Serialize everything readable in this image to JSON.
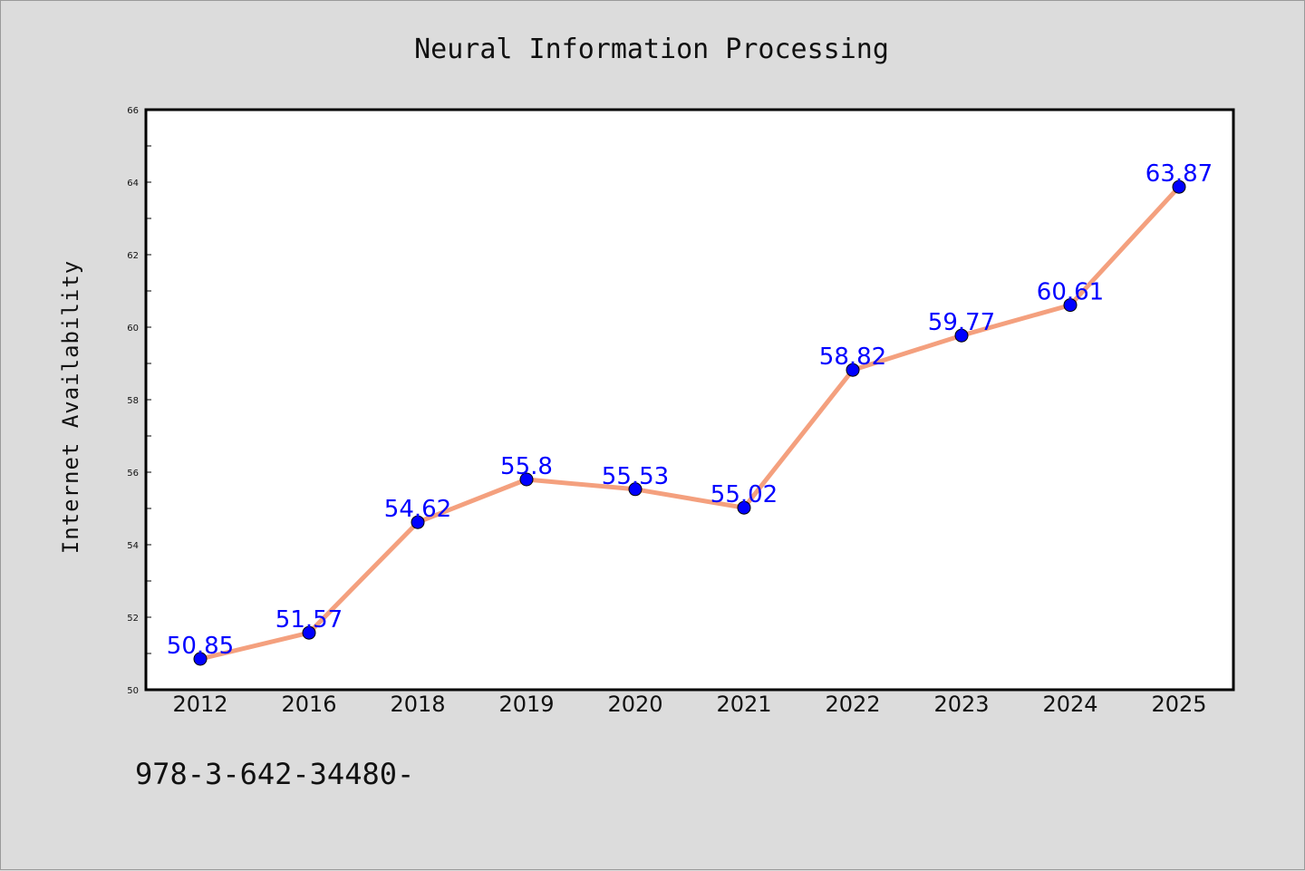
{
  "chart_data": {
    "type": "line",
    "title": "Neural Information Processing",
    "xlabel": "",
    "ylabel": "Internet Availability",
    "categories": [
      "2012",
      "2016",
      "2018",
      "2019",
      "2020",
      "2021",
      "2022",
      "2023",
      "2024",
      "2025"
    ],
    "series": [
      {
        "values": [
          50.85,
          51.57,
          54.62,
          55.8,
          55.53,
          55.02,
          58.82,
          59.77,
          60.61,
          63.87
        ],
        "data_labels": [
          "50.85",
          "51.57",
          "54.62",
          "55.8",
          "55.53",
          "55.02",
          "58.82",
          "59.77",
          "60.61",
          "63.87"
        ],
        "line_color": "#f4a07e",
        "marker_color": "#0000ff"
      }
    ],
    "ylim": [
      50,
      66
    ],
    "y_ticks": [
      "50",
      "52",
      "54",
      "56",
      "58",
      "60",
      "62",
      "64",
      "66"
    ],
    "grid": false,
    "legend": "none",
    "background_color": "#dcdcdc",
    "plot_background_color": "#ffffff"
  },
  "footnote": "978-3-642-34480-"
}
